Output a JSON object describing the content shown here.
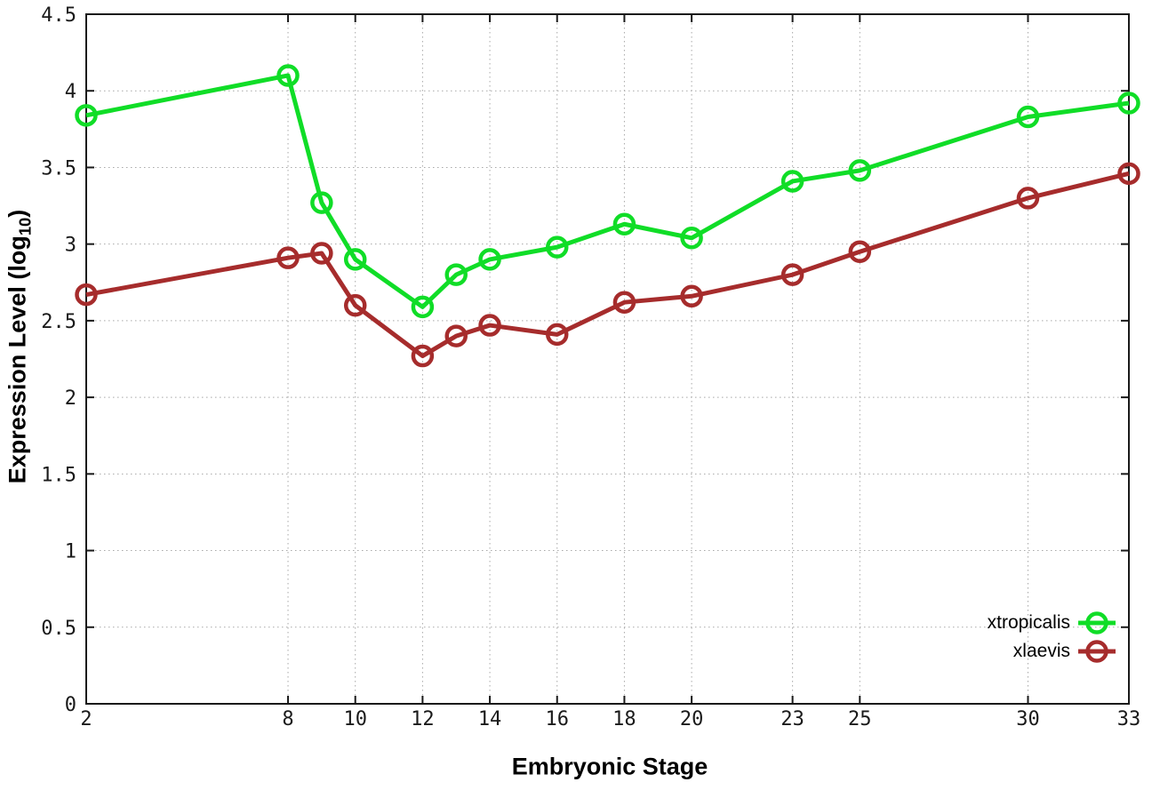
{
  "chart_data": {
    "type": "line",
    "title": "",
    "xlabel": "Embryonic Stage",
    "ylabel": "Expression Level (log10)",
    "ylabel_parts": {
      "prefix": "Expression Level (log",
      "sub": "10",
      "suffix": ")"
    },
    "x": [
      2,
      8,
      9,
      10,
      12,
      13,
      14,
      16,
      18,
      20,
      23,
      25,
      30,
      33
    ],
    "series": [
      {
        "name": "xtropicalis",
        "color": "#10dd27",
        "values": [
          3.84,
          4.1,
          3.27,
          2.9,
          2.59,
          2.8,
          2.9,
          2.98,
          3.13,
          3.04,
          3.41,
          3.48,
          3.83,
          3.92
        ]
      },
      {
        "name": "xlaevis",
        "color": "#a62c2c",
        "values": [
          2.67,
          2.91,
          2.94,
          2.6,
          2.27,
          2.4,
          2.47,
          2.41,
          2.62,
          2.66,
          2.8,
          2.95,
          3.3,
          3.46
        ]
      }
    ],
    "xticks": {
      "values": [
        2,
        8,
        10,
        12,
        14,
        16,
        18,
        20,
        23,
        25,
        30,
        33
      ],
      "labels": [
        "2",
        "8",
        "10",
        "12",
        "14",
        "16",
        "18",
        "20",
        "23",
        "25",
        "30",
        "33"
      ]
    },
    "yticks": {
      "values": [
        0,
        0.5,
        1,
        1.5,
        2,
        2.5,
        3,
        3.5,
        4,
        4.5
      ],
      "labels": [
        "0",
        "0.5",
        "1",
        "1.5",
        "2",
        "2.5",
        "3",
        "3.5",
        "4",
        "4.5"
      ]
    },
    "xlim": [
      2,
      33
    ],
    "ylim": [
      0,
      4.5
    ],
    "grid": true,
    "legend_position": "bottom-right",
    "style": {
      "grid_color": "#a8a8a8",
      "axis_color": "#1a1a1a",
      "line_width": 5,
      "marker_radius": 10.5,
      "marker_stroke": 4.5
    }
  }
}
